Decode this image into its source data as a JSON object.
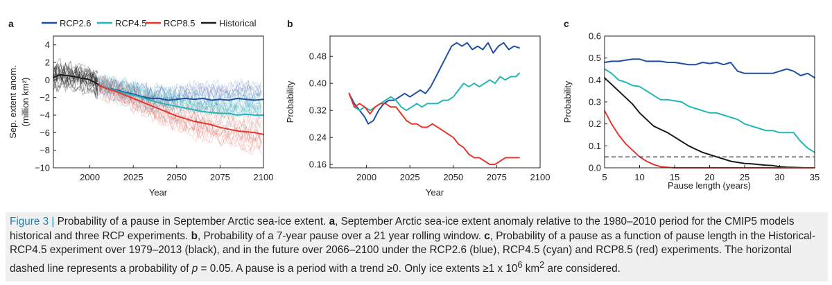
{
  "colors": {
    "rcp26": "#1f4ea1",
    "rcp45": "#22b6b6",
    "rcp85": "#e8352b",
    "historical": "#1a1a1a",
    "caption_lead": "#1a7fb5",
    "caption_bg": "#f0f0f1"
  },
  "chart_data": [
    {
      "panel": "a",
      "type": "line",
      "ylabel": "Sep. extent anom.",
      "ylabel2": "(million km²)",
      "xlabel": "Year",
      "xlim": [
        1979,
        2100
      ],
      "ylim": [
        -10,
        5
      ],
      "xticks": [
        2000,
        2025,
        2050,
        2075,
        2100
      ],
      "yticks": [
        4,
        2,
        0,
        -2,
        -4,
        -6,
        -8,
        -10
      ],
      "legend": {
        "placement": "top",
        "entries": [
          "RCP2.6",
          "RCP4.5",
          "RCP8.5",
          "Historical"
        ]
      },
      "series": [
        {
          "name": "Historical",
          "color": "historical",
          "x": [
            1979,
            1983,
            1987,
            1991,
            1995,
            1999,
            2003,
            2005
          ],
          "y": [
            0.3,
            0.6,
            0.5,
            0.4,
            0.2,
            0.1,
            -0.3,
            -0.5
          ]
        },
        {
          "name": "RCP2.6",
          "color": "rcp26",
          "x": [
            2005,
            2010,
            2015,
            2020,
            2025,
            2030,
            2035,
            2040,
            2045,
            2050,
            2055,
            2060,
            2065,
            2070,
            2075,
            2080,
            2085,
            2090,
            2095,
            2100
          ],
          "y": [
            -0.6,
            -0.9,
            -1.1,
            -1.4,
            -1.6,
            -1.9,
            -2.1,
            -2.1,
            -2.3,
            -2.2,
            -2.1,
            -2.2,
            -2.1,
            -2.3,
            -2.2,
            -2.3,
            -2.1,
            -2.2,
            -2.3,
            -2.2
          ]
        },
        {
          "name": "RCP4.5",
          "color": "rcp45",
          "x": [
            2005,
            2010,
            2015,
            2020,
            2025,
            2030,
            2035,
            2040,
            2045,
            2050,
            2055,
            2060,
            2065,
            2070,
            2075,
            2080,
            2085,
            2090,
            2095,
            2100
          ],
          "y": [
            -0.6,
            -0.9,
            -1.2,
            -1.5,
            -1.7,
            -2.0,
            -2.3,
            -2.6,
            -2.8,
            -3.0,
            -3.2,
            -3.4,
            -3.6,
            -3.7,
            -3.8,
            -3.8,
            -4.0,
            -3.9,
            -4.0,
            -4.0
          ]
        },
        {
          "name": "RCP8.5",
          "color": "rcp85",
          "x": [
            2005,
            2010,
            2015,
            2020,
            2025,
            2030,
            2035,
            2040,
            2045,
            2050,
            2055,
            2060,
            2065,
            2070,
            2075,
            2080,
            2085,
            2090,
            2095,
            2100
          ],
          "y": [
            -0.6,
            -1.0,
            -1.3,
            -1.7,
            -2.1,
            -2.5,
            -2.9,
            -3.3,
            -3.7,
            -4.1,
            -4.4,
            -4.7,
            -4.9,
            -5.1,
            -5.4,
            -5.6,
            -5.8,
            -5.9,
            -6.0,
            -6.2
          ]
        }
      ]
    },
    {
      "panel": "b",
      "type": "line",
      "ylabel": "Probability",
      "xlabel": "Year",
      "xlim": [
        1979,
        2100
      ],
      "ylim": [
        0.15,
        0.54
      ],
      "xticks": [
        2000,
        2025,
        2050,
        2075,
        2100
      ],
      "yticks": [
        0.48,
        0.4,
        0.32,
        0.24,
        0.16
      ],
      "series": [
        {
          "color": "rcp26",
          "x": [
            1990,
            1993,
            1996,
            1999,
            2001,
            2004,
            2007,
            2010,
            2013,
            2016,
            2019,
            2022,
            2025,
            2028,
            2031,
            2034,
            2037,
            2040,
            2043,
            2046,
            2049,
            2052,
            2055,
            2058,
            2061,
            2064,
            2067,
            2070,
            2073,
            2076,
            2079,
            2082,
            2085,
            2088
          ],
          "y": [
            0.37,
            0.34,
            0.32,
            0.3,
            0.28,
            0.29,
            0.32,
            0.34,
            0.35,
            0.35,
            0.36,
            0.37,
            0.36,
            0.37,
            0.38,
            0.37,
            0.39,
            0.42,
            0.45,
            0.48,
            0.51,
            0.52,
            0.51,
            0.52,
            0.5,
            0.51,
            0.5,
            0.52,
            0.49,
            0.51,
            0.52,
            0.5,
            0.51,
            0.505
          ]
        },
        {
          "color": "rcp45",
          "x": [
            1990,
            1993,
            1996,
            1999,
            2002,
            2005,
            2008,
            2011,
            2014,
            2017,
            2020,
            2023,
            2026,
            2029,
            2032,
            2035,
            2038,
            2041,
            2044,
            2047,
            2050,
            2053,
            2056,
            2059,
            2062,
            2065,
            2068,
            2071,
            2074,
            2077,
            2080,
            2083,
            2086,
            2088
          ],
          "y": [
            0.37,
            0.33,
            0.32,
            0.33,
            0.32,
            0.33,
            0.34,
            0.35,
            0.36,
            0.35,
            0.33,
            0.32,
            0.33,
            0.34,
            0.33,
            0.34,
            0.34,
            0.34,
            0.35,
            0.35,
            0.36,
            0.38,
            0.4,
            0.39,
            0.4,
            0.39,
            0.4,
            0.41,
            0.4,
            0.42,
            0.41,
            0.42,
            0.42,
            0.43
          ]
        },
        {
          "color": "rcp85",
          "x": [
            1990,
            1993,
            1996,
            1999,
            2002,
            2005,
            2008,
            2011,
            2014,
            2017,
            2020,
            2023,
            2026,
            2029,
            2032,
            2035,
            2038,
            2041,
            2044,
            2047,
            2050,
            2053,
            2056,
            2059,
            2062,
            2065,
            2068,
            2071,
            2074,
            2077,
            2080,
            2083,
            2086,
            2088
          ],
          "y": [
            0.37,
            0.33,
            0.34,
            0.33,
            0.31,
            0.33,
            0.34,
            0.34,
            0.33,
            0.33,
            0.31,
            0.29,
            0.28,
            0.28,
            0.27,
            0.27,
            0.28,
            0.27,
            0.26,
            0.25,
            0.24,
            0.22,
            0.21,
            0.19,
            0.18,
            0.18,
            0.17,
            0.16,
            0.16,
            0.17,
            0.18,
            0.18,
            0.18,
            0.18
          ]
        }
      ]
    },
    {
      "panel": "c",
      "type": "line",
      "ylabel": "Probability",
      "xlabel": "Pause length (years)",
      "xlim": [
        5,
        35
      ],
      "ylim": [
        0,
        0.6
      ],
      "xticks": [
        5,
        10,
        15,
        20,
        25,
        30,
        35
      ],
      "yticks": [
        0.6,
        0.5,
        0.4,
        0.3,
        0.2,
        0.1,
        0.0
      ],
      "reference_line": {
        "y": 0.05,
        "style": "dashed"
      },
      "series": [
        {
          "color": "rcp26",
          "x": [
            5,
            6,
            7,
            8,
            9,
            10,
            11,
            12,
            13,
            14,
            15,
            16,
            17,
            18,
            19,
            20,
            21,
            22,
            23,
            24,
            25,
            26,
            27,
            28,
            29,
            30,
            31,
            32,
            33,
            34,
            35
          ],
          "y": [
            0.48,
            0.485,
            0.485,
            0.49,
            0.495,
            0.495,
            0.485,
            0.485,
            0.485,
            0.48,
            0.48,
            0.475,
            0.47,
            0.47,
            0.48,
            0.475,
            0.48,
            0.47,
            0.48,
            0.44,
            0.43,
            0.43,
            0.43,
            0.43,
            0.43,
            0.44,
            0.45,
            0.44,
            0.42,
            0.43,
            0.41
          ]
        },
        {
          "color": "rcp45",
          "x": [
            5,
            6,
            7,
            8,
            9,
            10,
            11,
            12,
            13,
            14,
            15,
            16,
            17,
            18,
            19,
            20,
            21,
            22,
            23,
            24,
            25,
            26,
            27,
            28,
            29,
            30,
            31,
            32,
            33,
            34,
            35
          ],
          "y": [
            0.45,
            0.43,
            0.4,
            0.39,
            0.375,
            0.37,
            0.35,
            0.33,
            0.31,
            0.31,
            0.305,
            0.3,
            0.28,
            0.27,
            0.26,
            0.25,
            0.25,
            0.24,
            0.23,
            0.22,
            0.2,
            0.19,
            0.18,
            0.17,
            0.17,
            0.16,
            0.16,
            0.16,
            0.12,
            0.09,
            0.07
          ]
        },
        {
          "color": "historical",
          "x": [
            5,
            6,
            7,
            8,
            9,
            10,
            11,
            12,
            13,
            14,
            15,
            16,
            17,
            18,
            19,
            20,
            21,
            22,
            23,
            24,
            25,
            26,
            27,
            28,
            29,
            30,
            31,
            32,
            33,
            34,
            35
          ],
          "y": [
            0.41,
            0.38,
            0.35,
            0.32,
            0.29,
            0.25,
            0.22,
            0.19,
            0.175,
            0.16,
            0.14,
            0.12,
            0.1,
            0.085,
            0.07,
            0.06,
            0.05,
            0.04,
            0.03,
            0.025,
            0.02,
            0.018,
            0.015,
            0.012,
            0.01,
            0.005,
            0.003,
            0.002,
            0.001,
            0.0,
            0.0
          ]
        },
        {
          "color": "rcp85",
          "x": [
            5,
            6,
            7,
            8,
            9,
            10,
            11,
            12,
            13,
            14,
            15,
            16,
            17,
            18,
            19,
            20,
            21,
            22,
            23,
            24,
            25,
            26,
            27,
            28,
            29,
            30,
            31,
            32,
            33,
            34,
            35
          ],
          "y": [
            0.26,
            0.2,
            0.15,
            0.11,
            0.08,
            0.05,
            0.03,
            0.015,
            0.005,
            0.002,
            0.0,
            0.0,
            0.0,
            0.0,
            0.0,
            0.0,
            0.0,
            0.0,
            0.0,
            0.0,
            0.0,
            0.0,
            0.0,
            0.0,
            0.0,
            0.0,
            0.0,
            0.0,
            0.0,
            0.0,
            0.0
          ]
        }
      ]
    }
  ],
  "caption": {
    "lead": "Figure 3 |",
    "s1": " Probability of a pause in September Arctic sea-ice extent. ",
    "a": "a",
    "s2": ", September Arctic sea-ice extent anomaly relative to the 1980–2010 period for the CMIP5 models historical and three RCP experiments. ",
    "b": "b",
    "s3": ", Probability of a 7-year pause over a 21 year rolling window. ",
    "c": "c",
    "s4": ", Probability of a pause as a function of pause length in the Historical-RCP4.5 experiment over 1979–2013 (black), and in the future over 2066–2100 under the RCP2.6 (blue), RCP4.5 (cyan) and RCP8.5 (red) experiments. The horizontal dashed line represents a probability of ",
    "p": "p",
    "s5": " = 0.05. A pause is a period with a trend ≥0. Only ice extents ≥1 x 10",
    "sup": "6",
    "s6": " km",
    "sup2": "2",
    "s7": " are considered."
  }
}
